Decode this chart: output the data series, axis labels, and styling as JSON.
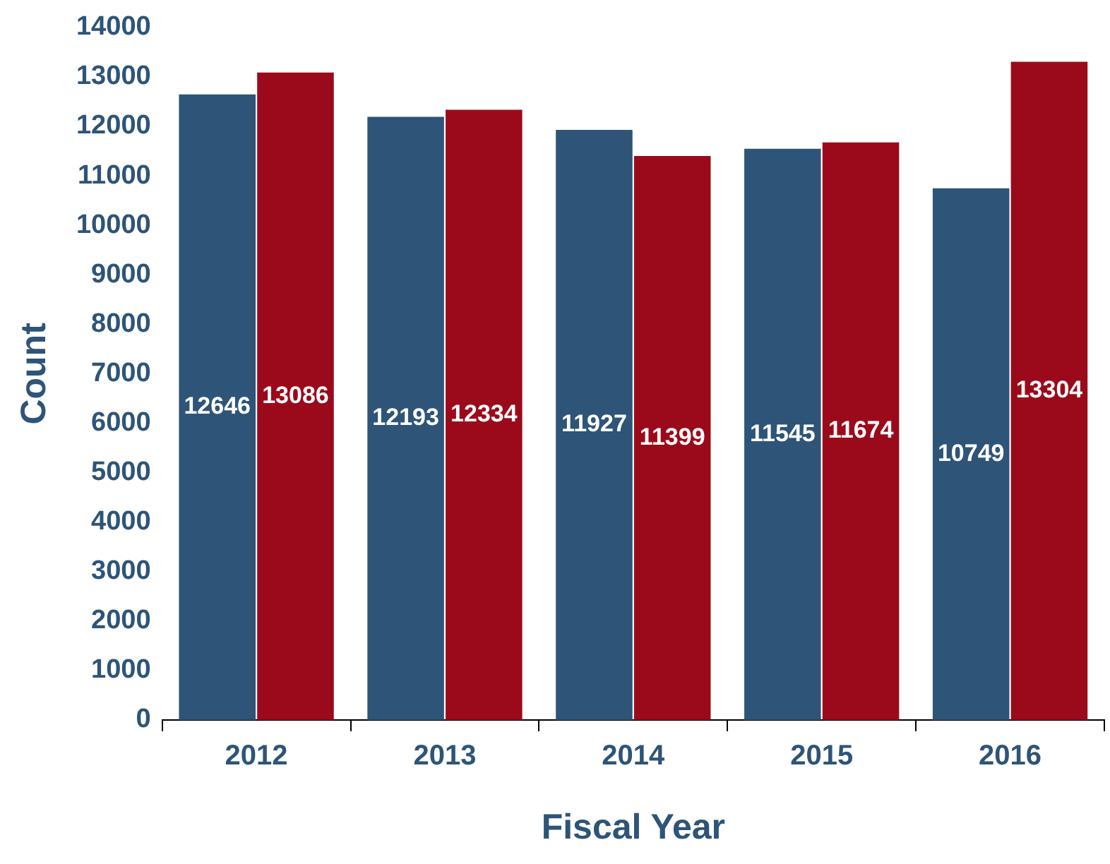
{
  "chart_data": {
    "type": "bar",
    "xlabel": "Fiscal Year",
    "ylabel": "Count",
    "categories": [
      "2012",
      "2013",
      "2014",
      "2015",
      "2016"
    ],
    "series": [
      {
        "color": "#2e5478",
        "values": [
          12646,
          12193,
          11927,
          11545,
          10749
        ]
      },
      {
        "color": "#9b0a1b",
        "values": [
          13086,
          12334,
          11399,
          11674,
          13304
        ]
      }
    ],
    "ylim": [
      0,
      14000
    ],
    "yticks": [
      0,
      1000,
      2000,
      3000,
      4000,
      5000,
      6000,
      7000,
      8000,
      9000,
      10000,
      11000,
      12000,
      13000,
      14000
    ],
    "grid": false,
    "legend": false,
    "data_labels": true
  }
}
